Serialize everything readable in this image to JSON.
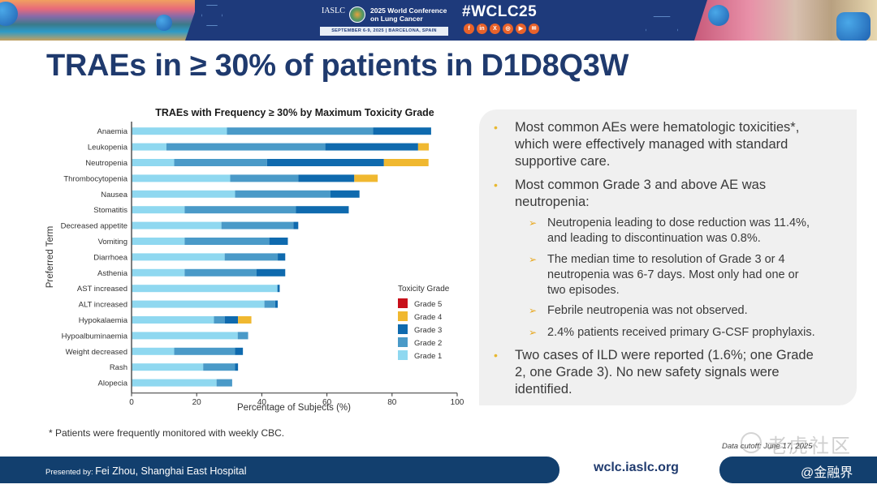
{
  "header": {
    "org": "IASLC",
    "conference_title_line1": "2025 World Conference",
    "conference_title_line2": "on Lung Cancer",
    "conference_dates": "SEPTEMBER 6-9, 2025  |  BARCELONA, SPAIN",
    "hashtag": "#WCLC25",
    "social_icons": [
      {
        "name": "facebook-icon",
        "glyph": "f"
      },
      {
        "name": "linkedin-icon",
        "glyph": "in"
      },
      {
        "name": "x-icon",
        "glyph": "X"
      },
      {
        "name": "instagram-icon",
        "glyph": "◎"
      },
      {
        "name": "youtube-icon",
        "glyph": "▶"
      },
      {
        "name": "wechat-icon",
        "glyph": "✉"
      }
    ]
  },
  "page": {
    "title": "TRAEs in ≥ 30% of patients in D1D8Q3W",
    "footnote": "* Patients were frequently monitored with weekly CBC.",
    "data_cutoff": "Data cutoff: June 17, 2025",
    "watermark": "老虎社区"
  },
  "panel": {
    "bullets": [
      {
        "lines": [
          "Most common AEs were hematologic toxicities*,",
          "which were effectively managed with standard",
          "supportive care."
        ]
      },
      {
        "lines": [
          "Most common Grade 3 and above AE was",
          "neutropenia:"
        ]
      },
      {
        "lines": [
          "Two cases of ILD were reported (1.6%; one Grade",
          "2, one Grade 3). No new safety signals were",
          "identified."
        ]
      }
    ],
    "sub_bullets": [
      {
        "lines": [
          "Neutropenia leading to dose reduction was 11.4%,",
          "and leading to discontinuation was 0.8%."
        ]
      },
      {
        "lines": [
          "The median time to resolution of Grade 3 or 4",
          "neutropenia was 6-7 days. Most only had one or",
          "two episodes."
        ]
      },
      {
        "lines": [
          "Febrile neutropenia was not observed."
        ]
      },
      {
        "lines": [
          "2.4% patients received primary G-CSF prophylaxis."
        ]
      }
    ],
    "bullet_glyph": "•",
    "sub_bullet_glyph": "➢"
  },
  "footer": {
    "presented_prefix": "Presented by: ",
    "presenter": "Fei Zhou, Shanghai East Hospital",
    "website": "wclc.iaslc.org",
    "handle": "@金融界"
  },
  "chart_data": {
    "type": "bar",
    "orientation": "horizontal-stacked",
    "title": "TRAEs with Frequency ≥ 30% by Maximum Toxicity Grade",
    "xlabel": "Percentage of Subjects (%)",
    "ylabel": "Preferred Term",
    "xlim": [
      0,
      100
    ],
    "xticks": [
      0,
      20,
      40,
      60,
      80,
      100
    ],
    "grid": false,
    "legend_title": "Toxicity Grade",
    "legend_position": "right",
    "categories": [
      "Anaemia",
      "Leukopenia",
      "Neutropenia",
      "Thrombocytopenia",
      "Nausea",
      "Stomatitis",
      "Decreased appetite",
      "Vomiting",
      "Diarrhoea",
      "Asthenia",
      "AST increased",
      "ALT increased",
      "Hypokalaemia",
      "Hypoalbuminaemia",
      "Weight decreased",
      "Rash",
      "Alopecia"
    ],
    "series": [
      {
        "name": "Grade 1",
        "color": "#8fd8f0",
        "values": [
          29.3,
          10.7,
          13.1,
          30.3,
          31.8,
          16.3,
          27.6,
          16.3,
          28.6,
          16.3,
          44.8,
          40.8,
          25.3,
          32.6,
          13.1,
          22.0,
          26.1
        ]
      },
      {
        "name": "Grade 2",
        "color": "#4a9ac8",
        "values": [
          44.9,
          48.8,
          28.5,
          20.9,
          29.3,
          34.2,
          22.1,
          26.0,
          16.3,
          22.1,
          0,
          3.3,
          3.3,
          3.2,
          18.7,
          9.8,
          4.8
        ]
      },
      {
        "name": "Grade 3",
        "color": "#0f6aae",
        "values": [
          17.8,
          28.5,
          35.9,
          17.2,
          8.9,
          16.2,
          1.5,
          5.7,
          2.3,
          8.8,
          0.7,
          0.8,
          4.1,
          0,
          2.4,
          0.9,
          0
        ]
      },
      {
        "name": "Grade 4",
        "color": "#f0b830",
        "values": [
          0,
          3.3,
          13.7,
          7.2,
          0,
          0,
          0,
          0,
          0,
          0,
          0,
          0,
          4.1,
          0,
          0,
          0,
          0
        ]
      },
      {
        "name": "Grade 5",
        "color": "#c8101a",
        "values": [
          0,
          0,
          0,
          0,
          0,
          0,
          0,
          0,
          0,
          0,
          0,
          0,
          0,
          0,
          0,
          0,
          0
        ]
      }
    ]
  }
}
